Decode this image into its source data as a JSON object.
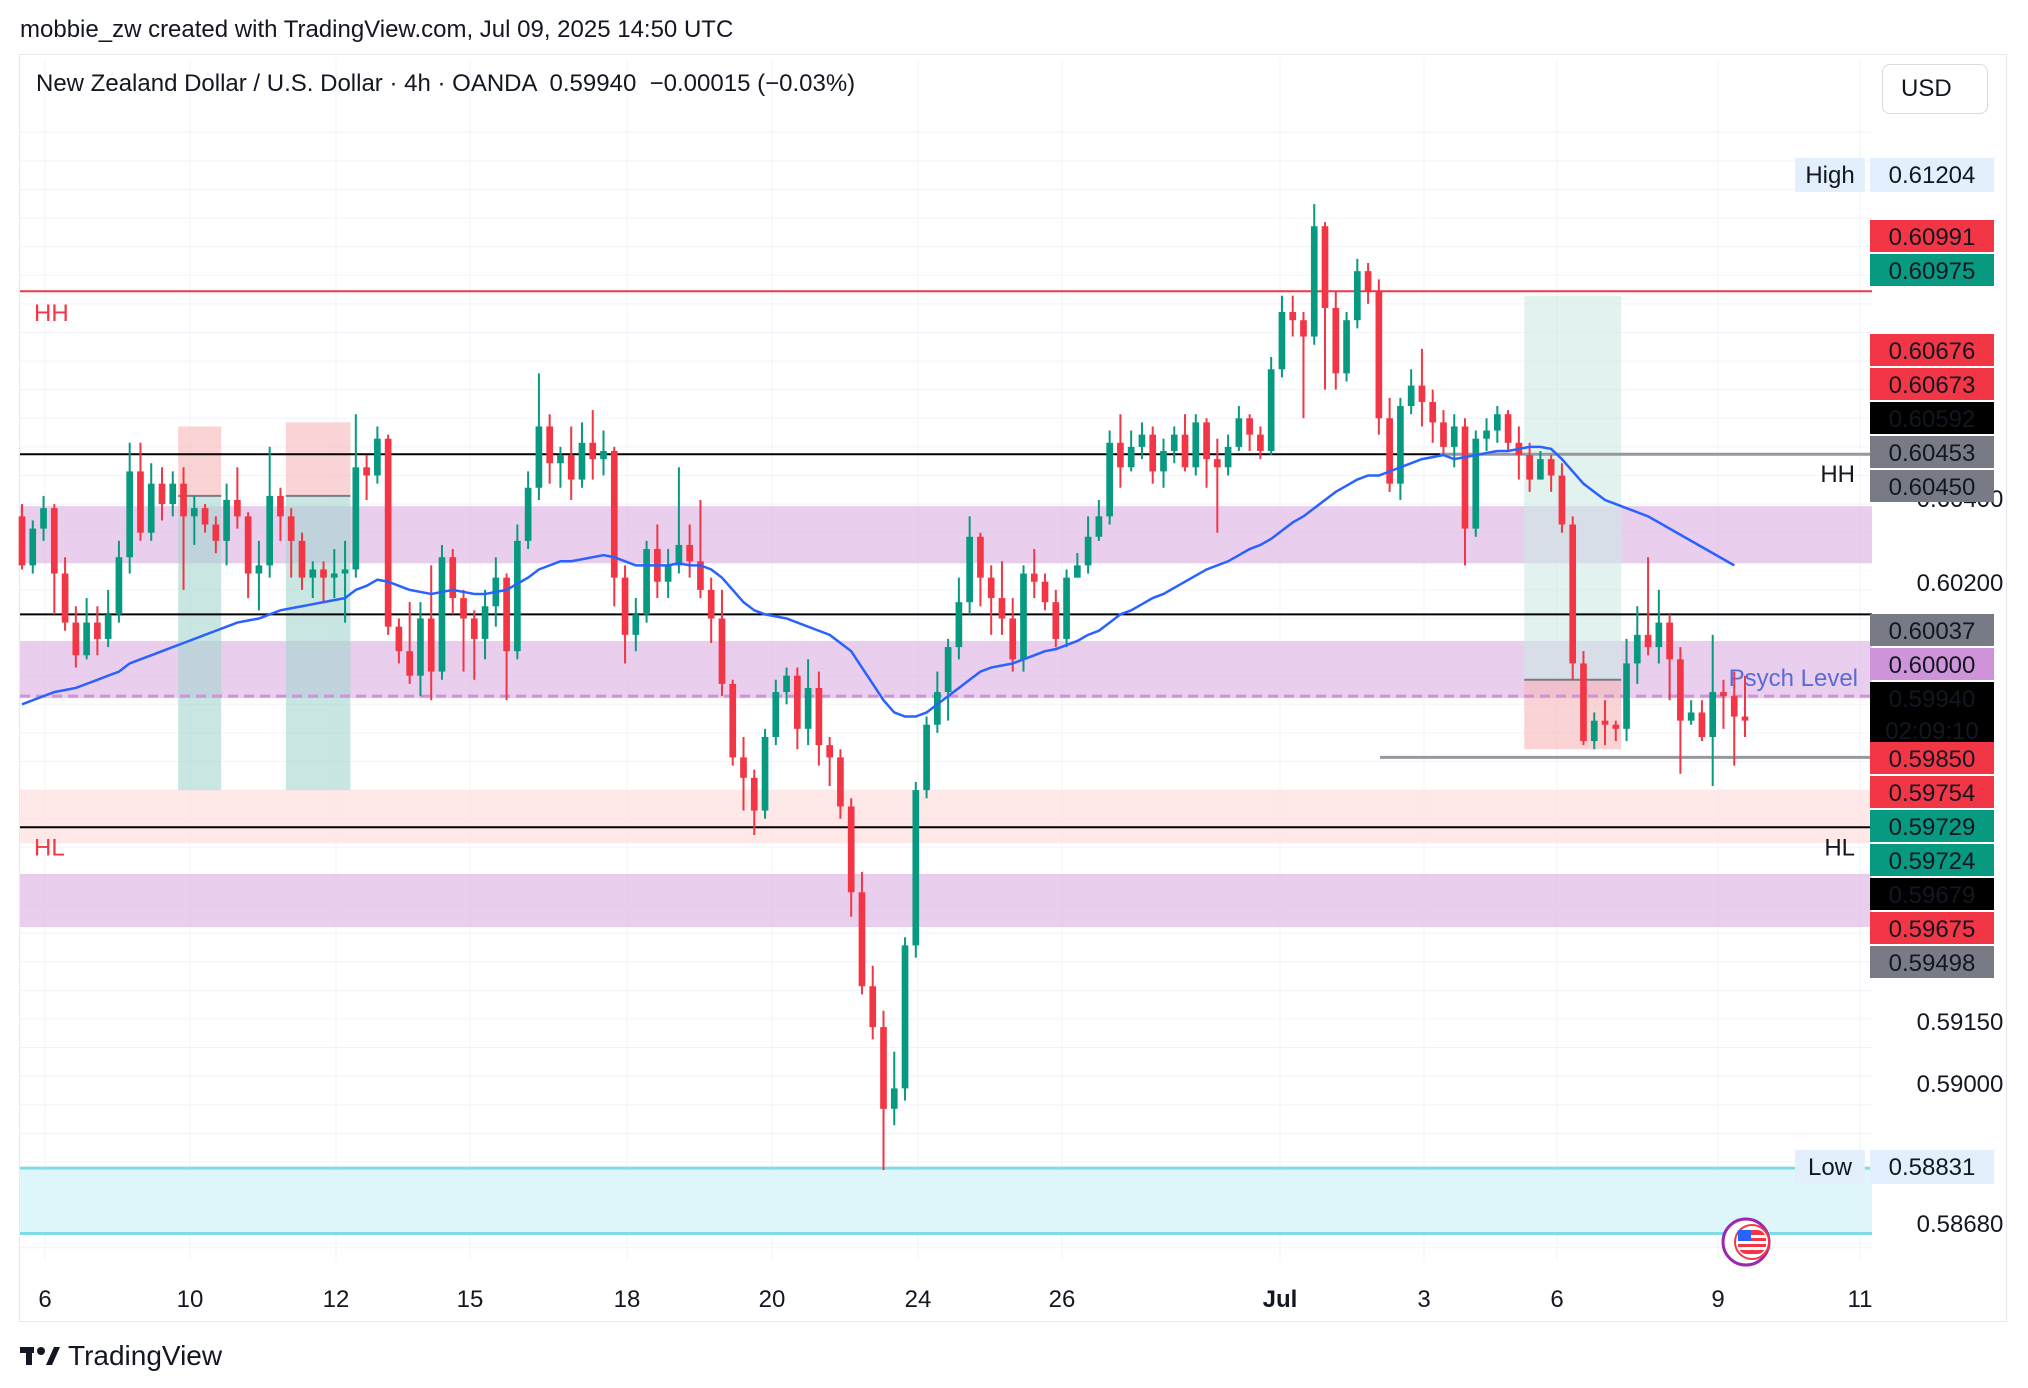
{
  "header": {
    "attribution": "mobbie_zw created with TradingView.com, Jul 09, 2025 14:50 UTC"
  },
  "legend": {
    "symbol": "New Zealand Dollar / U.S. Dollar",
    "interval": "4h",
    "broker": "OANDA",
    "last": "0.59940",
    "change": "−0.00015",
    "change_pct": "(−0.03%)"
  },
  "currency_button": "USD",
  "brand": "TradingView",
  "chart_data": {
    "type": "candlestick",
    "y_range": [
      0.5862,
      0.6141
    ],
    "x_ticks": [
      "6",
      "10",
      "12",
      "15",
      "18",
      "20",
      "24",
      "26",
      "Jul",
      "3",
      "6",
      "9",
      "11"
    ],
    "y_ticks": [
      "0.60400",
      "0.60200",
      "0.59150",
      "0.59000",
      "0.58680"
    ],
    "high": {
      "label": "High",
      "value": "0.61204"
    },
    "low": {
      "label": "Low",
      "value": "0.58831"
    },
    "price_tags": [
      {
        "value": "0.60991",
        "color": "#f23645"
      },
      {
        "value": "0.60975",
        "color": "#089981"
      },
      {
        "value": "0.60676",
        "color": "#f23645"
      },
      {
        "value": "0.60673",
        "color": "#f23645"
      },
      {
        "value": "0.60592",
        "color": "#000000"
      },
      {
        "value": "0.60453",
        "color": "#787b86"
      },
      {
        "value": "0.60450",
        "color": "#787b86"
      },
      {
        "value": "0.60037",
        "color": "#787b86"
      },
      {
        "value": "0.60000",
        "color": "#ce93d8"
      },
      {
        "value": "0.59940",
        "color": "#000000",
        "sub": "02:09:10"
      },
      {
        "value": "0.59850",
        "color": "#f23645"
      },
      {
        "value": "0.59754",
        "color": "#f23645"
      },
      {
        "value": "0.59729",
        "color": "#089981"
      },
      {
        "value": "0.59724",
        "color": "#089981"
      },
      {
        "value": "0.59679",
        "color": "#000000"
      },
      {
        "value": "0.59675",
        "color": "#f23645"
      },
      {
        "value": "0.59498",
        "color": "#787b86"
      }
    ],
    "horizontal_lines": [
      {
        "price": 0.60991,
        "color": "#f23645",
        "label": "HH",
        "label_side": "left"
      },
      {
        "price": 0.60592,
        "color": "#000000",
        "label": "HH",
        "label_side": "right"
      },
      {
        "price": 0.602,
        "color": "#000000"
      },
      {
        "price": 0.59679,
        "color": "#000000",
        "label": "HL",
        "label_side": "both"
      },
      {
        "price": 0.6,
        "color": "#ce93d8",
        "dashed": true,
        "label": "Psych Level"
      }
    ],
    "zones": [
      {
        "from": 0.60325,
        "to": 0.60465,
        "color": "#e1bee7"
      },
      {
        "from": 0.59995,
        "to": 0.60135,
        "color": "#e1bee7"
      },
      {
        "from": 0.5964,
        "to": 0.5977,
        "color": "#fde0e0"
      },
      {
        "from": 0.59435,
        "to": 0.59565,
        "color": "#e1bee7"
      },
      {
        "from": 0.58685,
        "to": 0.58845,
        "color": "#d4f4f8"
      }
    ],
    "candles": [
      [
        0.6044,
        0.6032,
        0.6047,
        0.6031
      ],
      [
        0.6032,
        0.6041,
        0.6043,
        0.603
      ],
      [
        0.6041,
        0.6046,
        0.6049,
        0.6038
      ],
      [
        0.6046,
        0.603,
        0.6047,
        0.602
      ],
      [
        0.603,
        0.6018,
        0.6034,
        0.6016
      ],
      [
        0.6018,
        0.601,
        0.6022,
        0.6007
      ],
      [
        0.601,
        0.6018,
        0.6024,
        0.6009
      ],
      [
        0.6018,
        0.6014,
        0.6022,
        0.601
      ],
      [
        0.6014,
        0.602,
        0.6026,
        0.6012
      ],
      [
        0.602,
        0.6034,
        0.6038,
        0.6018
      ],
      [
        0.6034,
        0.6055,
        0.6062,
        0.603
      ],
      [
        0.6055,
        0.604,
        0.6062,
        0.6038
      ],
      [
        0.604,
        0.6052,
        0.6057,
        0.6038
      ],
      [
        0.6052,
        0.6047,
        0.6056,
        0.6043
      ],
      [
        0.6047,
        0.6052,
        0.6055,
        0.6044
      ],
      [
        0.6052,
        0.6044,
        0.6056,
        0.6026
      ],
      [
        0.6044,
        0.6046,
        0.6049,
        0.6037
      ],
      [
        0.6046,
        0.6042,
        0.6047,
        0.604
      ],
      [
        0.6042,
        0.6038,
        0.6044,
        0.6035
      ],
      [
        0.6038,
        0.6048,
        0.6052,
        0.6032
      ],
      [
        0.6048,
        0.6044,
        0.6056,
        0.6041
      ],
      [
        0.6044,
        0.603,
        0.6045,
        0.6024
      ],
      [
        0.603,
        0.6032,
        0.6038,
        0.6021
      ],
      [
        0.6032,
        0.6049,
        0.6061,
        0.6029
      ],
      [
        0.6049,
        0.6044,
        0.6051,
        0.6038
      ],
      [
        0.6044,
        0.6038,
        0.6046,
        0.6029
      ],
      [
        0.6038,
        0.6029,
        0.604,
        0.6026
      ],
      [
        0.6029,
        0.6031,
        0.6033,
        0.6024
      ],
      [
        0.6031,
        0.6029,
        0.6033,
        0.6023
      ],
      [
        0.6029,
        0.603,
        0.6036,
        0.6024
      ],
      [
        0.603,
        0.6031,
        0.6038,
        0.6018
      ],
      [
        0.6031,
        0.6056,
        0.6069,
        0.6029
      ],
      [
        0.6056,
        0.6054,
        0.6059,
        0.6048
      ],
      [
        0.6054,
        0.6063,
        0.6066,
        0.6052
      ],
      [
        0.6063,
        0.6017,
        0.6064,
        0.6015
      ],
      [
        0.6017,
        0.6011,
        0.6019,
        0.6008
      ],
      [
        0.6011,
        0.6005,
        0.6023,
        0.6003
      ],
      [
        0.6005,
        0.6019,
        0.6023,
        0.6
      ],
      [
        0.6019,
        0.6006,
        0.6032,
        0.5999
      ],
      [
        0.6006,
        0.6034,
        0.6037,
        0.6004
      ],
      [
        0.6034,
        0.6024,
        0.6036,
        0.602
      ],
      [
        0.6024,
        0.6019,
        0.6026,
        0.6006
      ],
      [
        0.6019,
        0.6014,
        0.6021,
        0.6004
      ],
      [
        0.6014,
        0.6022,
        0.6026,
        0.6009
      ],
      [
        0.6022,
        0.6029,
        0.6034,
        0.6017
      ],
      [
        0.6029,
        0.6011,
        0.603,
        0.5999
      ],
      [
        0.6011,
        0.6038,
        0.6042,
        0.6009
      ],
      [
        0.6038,
        0.6051,
        0.6055,
        0.6036
      ],
      [
        0.6051,
        0.6066,
        0.6079,
        0.6048
      ],
      [
        0.6066,
        0.6057,
        0.6069,
        0.6052
      ],
      [
        0.6057,
        0.6059,
        0.6061,
        0.6051
      ],
      [
        0.6059,
        0.6053,
        0.6066,
        0.6048
      ],
      [
        0.6053,
        0.6062,
        0.6067,
        0.6051
      ],
      [
        0.6062,
        0.6058,
        0.607,
        0.6053
      ],
      [
        0.6058,
        0.606,
        0.6065,
        0.6054
      ],
      [
        0.606,
        0.6029,
        0.6061,
        0.6022
      ],
      [
        0.6029,
        0.6015,
        0.6032,
        0.6008
      ],
      [
        0.6015,
        0.602,
        0.6024,
        0.6011
      ],
      [
        0.602,
        0.6036,
        0.6038,
        0.6018
      ],
      [
        0.6036,
        0.6028,
        0.6042,
        0.6024
      ],
      [
        0.6028,
        0.6032,
        0.6036,
        0.6024
      ],
      [
        0.6032,
        0.6037,
        0.6056,
        0.603
      ],
      [
        0.6037,
        0.6033,
        0.6042,
        0.6029
      ],
      [
        0.6033,
        0.6026,
        0.6048,
        0.6024
      ],
      [
        0.6026,
        0.6019,
        0.6029,
        0.6013
      ],
      [
        0.6019,
        0.6003,
        0.6026,
        0.6
      ],
      [
        0.6003,
        0.5985,
        0.6004,
        0.5983
      ],
      [
        0.5985,
        0.598,
        0.599,
        0.5972
      ],
      [
        0.598,
        0.5972,
        0.5982,
        0.5966
      ],
      [
        0.5972,
        0.599,
        0.5992,
        0.597
      ],
      [
        0.599,
        0.6001,
        0.6004,
        0.5988
      ],
      [
        0.6001,
        0.6005,
        0.6007,
        0.5998
      ],
      [
        0.6005,
        0.5992,
        0.6007,
        0.5987
      ],
      [
        0.5992,
        0.6002,
        0.6009,
        0.5988
      ],
      [
        0.6002,
        0.5988,
        0.6006,
        0.5983
      ],
      [
        0.5988,
        0.5985,
        0.599,
        0.5978
      ],
      [
        0.5985,
        0.5973,
        0.5987,
        0.597
      ],
      [
        0.5973,
        0.5952,
        0.5975,
        0.5946
      ],
      [
        0.5952,
        0.5929,
        0.5957,
        0.5927
      ],
      [
        0.5929,
        0.5919,
        0.5934,
        0.5916
      ],
      [
        0.5919,
        0.5899,
        0.5923,
        0.5884
      ],
      [
        0.5899,
        0.5904,
        0.5913,
        0.5895
      ],
      [
        0.5904,
        0.5939,
        0.5941,
        0.5901
      ],
      [
        0.5939,
        0.5977,
        0.5979,
        0.5936
      ],
      [
        0.5977,
        0.5993,
        0.5995,
        0.5975
      ],
      [
        0.5993,
        0.6001,
        0.6006,
        0.5991
      ],
      [
        0.6001,
        0.6012,
        0.6014,
        0.5994
      ],
      [
        0.6012,
        0.6023,
        0.6029,
        0.6009
      ],
      [
        0.6023,
        0.6039,
        0.6044,
        0.602
      ],
      [
        0.6039,
        0.6029,
        0.604,
        0.6022
      ],
      [
        0.6029,
        0.6024,
        0.6032,
        0.6015
      ],
      [
        0.6024,
        0.6019,
        0.6033,
        0.6015
      ],
      [
        0.6019,
        0.6009,
        0.6024,
        0.6006
      ],
      [
        0.6009,
        0.603,
        0.6032,
        0.6006
      ],
      [
        0.603,
        0.6028,
        0.6036,
        0.6024
      ],
      [
        0.6028,
        0.6023,
        0.603,
        0.6021
      ],
      [
        0.6023,
        0.6014,
        0.6026,
        0.6012
      ],
      [
        0.6014,
        0.6029,
        0.6031,
        0.6012
      ],
      [
        0.6029,
        0.6032,
        0.6035,
        0.6029
      ],
      [
        0.6032,
        0.6039,
        0.6044,
        0.603
      ],
      [
        0.6039,
        0.6044,
        0.6048,
        0.6038
      ],
      [
        0.6044,
        0.6062,
        0.6065,
        0.6042
      ],
      [
        0.6062,
        0.6056,
        0.6069,
        0.6051
      ],
      [
        0.6056,
        0.6061,
        0.6065,
        0.6055
      ],
      [
        0.6061,
        0.6064,
        0.6067,
        0.6058
      ],
      [
        0.6064,
        0.6055,
        0.6066,
        0.6052
      ],
      [
        0.6055,
        0.606,
        0.6063,
        0.6051
      ],
      [
        0.606,
        0.6064,
        0.6066,
        0.6057
      ],
      [
        0.6064,
        0.6056,
        0.6069,
        0.6055
      ],
      [
        0.6056,
        0.6067,
        0.6069,
        0.6054
      ],
      [
        0.6067,
        0.6058,
        0.6068,
        0.6051
      ],
      [
        0.6058,
        0.6056,
        0.6063,
        0.604
      ],
      [
        0.6056,
        0.6061,
        0.6064,
        0.6054
      ],
      [
        0.6061,
        0.6068,
        0.6071,
        0.606
      ],
      [
        0.6068,
        0.6064,
        0.6069,
        0.606
      ],
      [
        0.6064,
        0.606,
        0.6066,
        0.6058
      ],
      [
        0.606,
        0.608,
        0.6083,
        0.6059
      ],
      [
        0.608,
        0.6094,
        0.6098,
        0.6078
      ],
      [
        0.6094,
        0.6092,
        0.6098,
        0.6088
      ],
      [
        0.6092,
        0.6088,
        0.6094,
        0.6068
      ],
      [
        0.6088,
        0.6115,
        0.61204,
        0.6086
      ],
      [
        0.6115,
        0.6095,
        0.6116,
        0.6075
      ],
      [
        0.6095,
        0.6079,
        0.6099,
        0.6075
      ],
      [
        0.6079,
        0.6092,
        0.6094,
        0.6077
      ],
      [
        0.6092,
        0.6104,
        0.6107,
        0.609
      ],
      [
        0.6104,
        0.6099,
        0.6106,
        0.6096
      ],
      [
        0.6099,
        0.6068,
        0.6102,
        0.6064
      ],
      [
        0.6068,
        0.6052,
        0.6073,
        0.605
      ],
      [
        0.6052,
        0.6071,
        0.6073,
        0.6048
      ],
      [
        0.6071,
        0.6076,
        0.608,
        0.6069
      ],
      [
        0.6076,
        0.6072,
        0.6085,
        0.6066
      ],
      [
        0.6072,
        0.6067,
        0.6075,
        0.6062
      ],
      [
        0.6067,
        0.6061,
        0.607,
        0.6059
      ],
      [
        0.6061,
        0.6066,
        0.6069,
        0.6056
      ],
      [
        0.6066,
        0.6041,
        0.6068,
        0.6032
      ],
      [
        0.6041,
        0.6063,
        0.6065,
        0.6039
      ],
      [
        0.6063,
        0.6065,
        0.6068,
        0.606
      ],
      [
        0.6065,
        0.6069,
        0.6071,
        0.6062
      ],
      [
        0.6069,
        0.6062,
        0.607,
        0.606
      ],
      [
        0.6062,
        0.6059,
        0.6066,
        0.6053
      ],
      [
        0.6059,
        0.6053,
        0.6062,
        0.605
      ],
      [
        0.6053,
        0.6058,
        0.606,
        0.6053
      ],
      [
        0.6058,
        0.6054,
        0.6059,
        0.605
      ],
      [
        0.6054,
        0.6042,
        0.6057,
        0.604
      ],
      [
        0.6042,
        0.6008,
        0.6044,
        0.6004
      ],
      [
        0.6008,
        0.5989,
        0.6011,
        0.5988
      ],
      [
        0.5989,
        0.5994,
        0.5996,
        0.5987
      ],
      [
        0.5994,
        0.5993,
        0.5999,
        0.5988
      ],
      [
        0.5993,
        0.5992,
        0.5994,
        0.5989
      ],
      [
        0.5992,
        0.6008,
        0.6014,
        0.5989
      ],
      [
        0.6008,
        0.6015,
        0.6022,
        0.6003
      ],
      [
        0.6015,
        0.6012,
        0.6034,
        0.601
      ],
      [
        0.6012,
        0.6018,
        0.6026,
        0.6008
      ],
      [
        0.6018,
        0.6009,
        0.602,
        0.5999
      ],
      [
        0.6009,
        0.5994,
        0.6012,
        0.5981
      ],
      [
        0.5994,
        0.5996,
        0.5999,
        0.5993
      ],
      [
        0.5996,
        0.599,
        0.5999,
        0.5989
      ],
      [
        0.599,
        0.6001,
        0.6015,
        0.5978
      ],
      [
        0.6001,
        0.6,
        0.6004,
        0.5992
      ],
      [
        0.6,
        0.5995,
        0.6006,
        0.5983
      ],
      [
        0.5995,
        0.5994,
        0.6005,
        0.599
      ]
    ],
    "moving_average": [
      0.5998,
      0.5999,
      0.6,
      0.6001,
      0.60015,
      0.6002,
      0.6003,
      0.6004,
      0.6005,
      0.6006,
      0.6008,
      0.6009,
      0.601,
      0.6011,
      0.6012,
      0.6013,
      0.6014,
      0.6015,
      0.6016,
      0.6017,
      0.6018,
      0.60185,
      0.6019,
      0.602,
      0.6021,
      0.60215,
      0.6022,
      0.60225,
      0.6023,
      0.60235,
      0.6024,
      0.6026,
      0.6027,
      0.60285,
      0.6028,
      0.6027,
      0.6026,
      0.60255,
      0.6025,
      0.60255,
      0.6026,
      0.60255,
      0.6025,
      0.6025,
      0.60255,
      0.6026,
      0.60275,
      0.6029,
      0.6031,
      0.6032,
      0.6033,
      0.6033,
      0.60335,
      0.6034,
      0.60345,
      0.6034,
      0.6033,
      0.6032,
      0.6032,
      0.6032,
      0.6032,
      0.60325,
      0.6032,
      0.6032,
      0.6031,
      0.6029,
      0.6026,
      0.6023,
      0.6021,
      0.602,
      0.60195,
      0.6019,
      0.6018,
      0.6017,
      0.6016,
      0.6015,
      0.6013,
      0.6011,
      0.6007,
      0.6003,
      0.5999,
      0.5996,
      0.5995,
      0.5995,
      0.5996,
      0.5998,
      0.6,
      0.6002,
      0.6004,
      0.6006,
      0.6007,
      0.60075,
      0.6008,
      0.6009,
      0.601,
      0.6011,
      0.60115,
      0.60125,
      0.60135,
      0.6015,
      0.6016,
      0.6018,
      0.602,
      0.6021,
      0.60225,
      0.6024,
      0.6025,
      0.60265,
      0.6028,
      0.60295,
      0.6031,
      0.6032,
      0.6033,
      0.60345,
      0.6036,
      0.6037,
      0.60385,
      0.60405,
      0.60425,
      0.6044,
      0.6046,
      0.6048,
      0.605,
      0.60515,
      0.6053,
      0.6054,
      0.6054,
      0.6055,
      0.6056,
      0.6057,
      0.6058,
      0.60585,
      0.6059,
      0.6058,
      0.60585,
      0.6059,
      0.60595,
      0.606,
      0.606,
      0.60605,
      0.6061,
      0.6061,
      0.60605,
      0.6058,
      0.6055,
      0.6052,
      0.605,
      0.6048,
      0.6047,
      0.6046,
      0.6045,
      0.6044,
      0.60425,
      0.6041,
      0.60395,
      0.6038,
      0.60365,
      0.6035,
      0.60335,
      0.6032
    ],
    "boxes": [
      {
        "x0": 15,
        "x1": 18,
        "top": 0.6066,
        "mid": 0.6049,
        "bottom": 0.5977,
        "upper_color": "#f7b7b7",
        "lower_color": "#a5d6cf"
      },
      {
        "x0": 25,
        "x1": 30,
        "top": 0.6067,
        "mid": 0.6049,
        "bottom": 0.5977,
        "upper_color": "#f7b7b7",
        "lower_color": "#a5d6cf"
      },
      {
        "x0": 140,
        "x1": 148,
        "top": 0.6098,
        "mid": 0.6004,
        "bottom": 0.5987,
        "upper_color": "#cdeae5",
        "lower_color": "#f7b7b7"
      }
    ]
  }
}
